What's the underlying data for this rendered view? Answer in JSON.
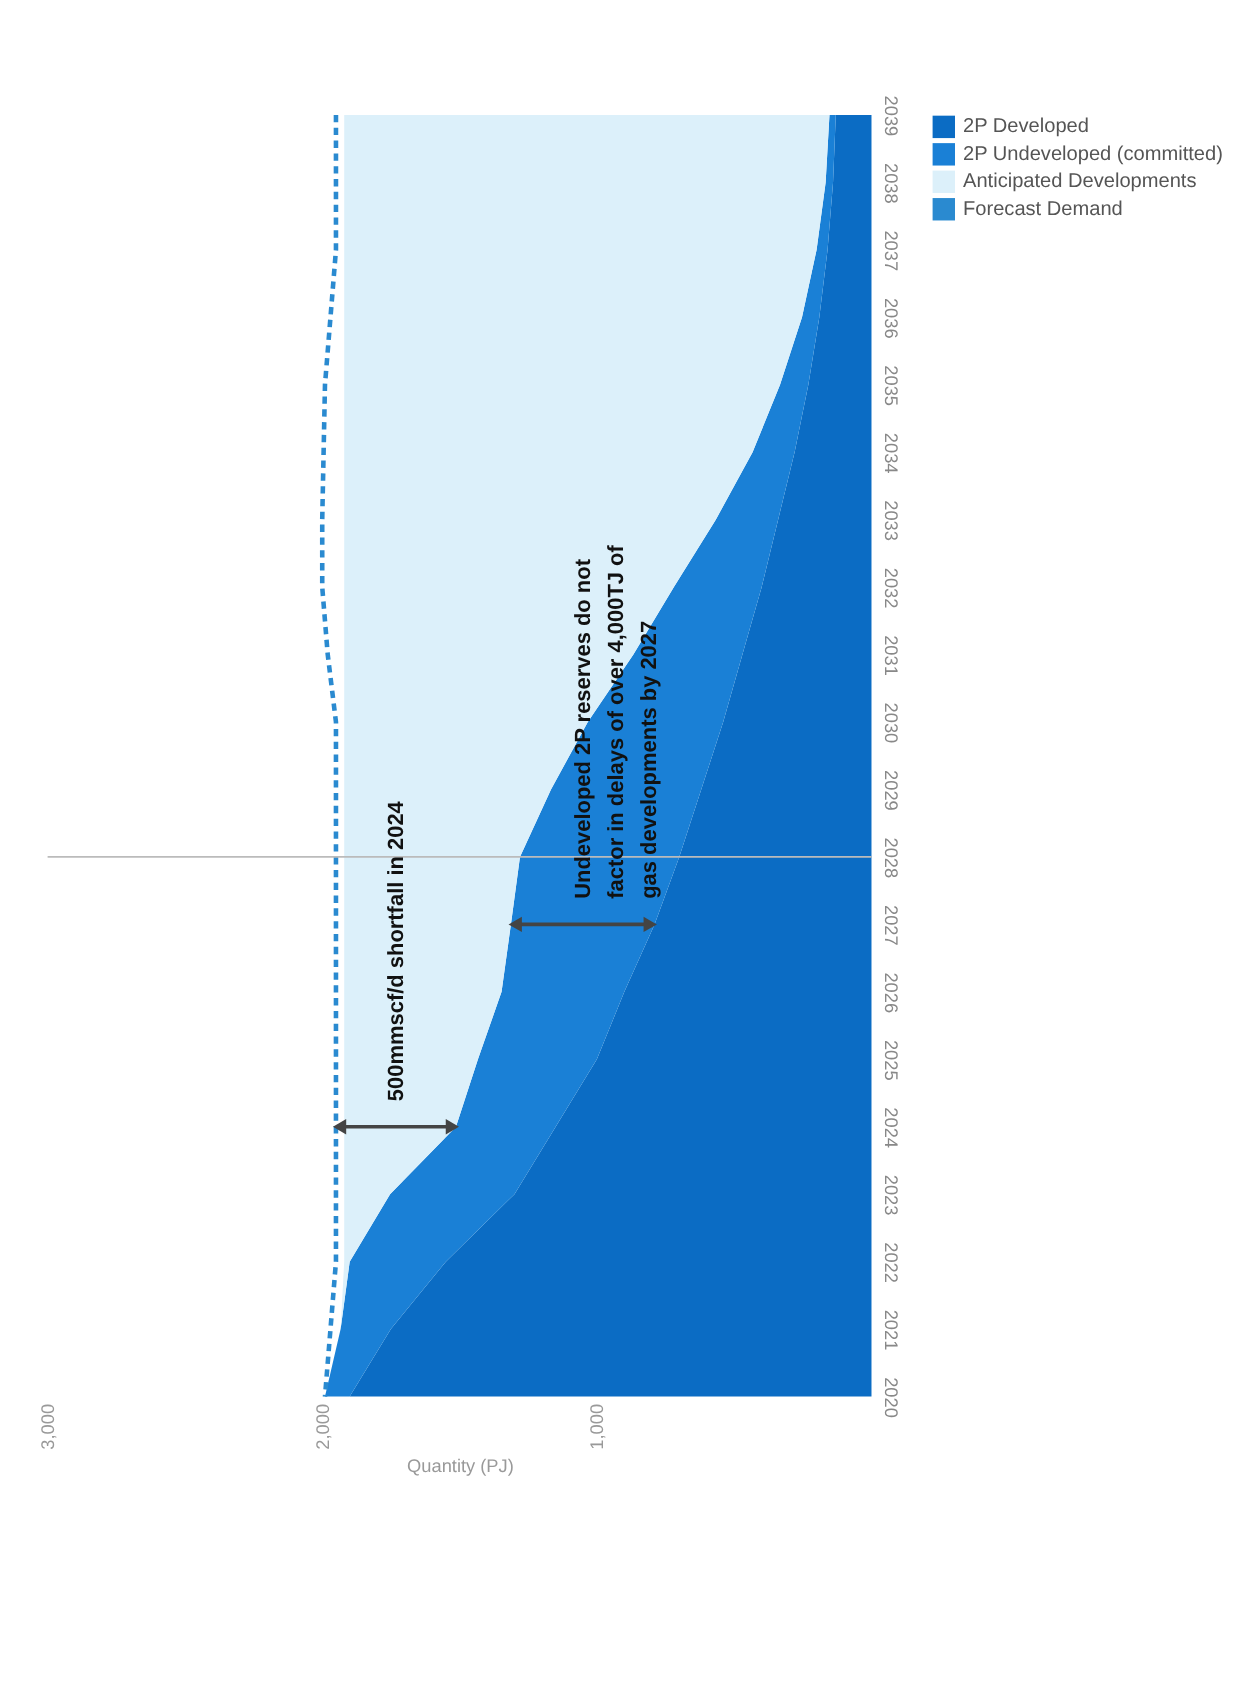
{
  "chart_data": {
    "type": "area",
    "orientation": "horizontal",
    "stacked": true,
    "categories": [
      "2039",
      "2038",
      "2037",
      "2036",
      "2035",
      "2034",
      "2033",
      "2032",
      "2031",
      "2030",
      "2029",
      "2028",
      "2027",
      "2026",
      "2025",
      "2024",
      "2023",
      "2022",
      "2021",
      "2020"
    ],
    "series": [
      {
        "name": "2P Developed",
        "color": "#0b6cc4",
        "values": [
          130,
          140,
          160,
          190,
          230,
          280,
          340,
          400,
          470,
          540,
          620,
          700,
          790,
          900,
          1000,
          1150,
          1300,
          1550,
          1750,
          1900
        ]
      },
      {
        "name": "2P Undeveloped (committed)",
        "color": "#1a80d6",
        "values": [
          23,
          27,
          40,
          63,
          103,
          153,
          227,
          320,
          397,
          493,
          547,
          580,
          523,
          447,
          433,
          363,
          453,
          350,
          183,
          90
        ]
      },
      {
        "name": "Anticipated Developments",
        "color": "#dcf0fa",
        "values": [
          1767,
          1753,
          1720,
          1667,
          1587,
          1487,
          1353,
          1200,
          1053,
          887,
          753,
          640,
          607,
          573,
          487,
          407,
          167,
          20,
          0,
          0
        ]
      },
      {
        "name": "Forecast Demand",
        "type": "line",
        "line_style": "dashed",
        "color": "#2a8ad0",
        "values": [
          1950,
          1950,
          1950,
          1970,
          1990,
          1995,
          2000,
          2000,
          1980,
          1950,
          1950,
          1950,
          1950,
          1950,
          1950,
          1950,
          1950,
          1950,
          1970,
          1990
        ]
      }
    ],
    "xlim": [
      3000,
      0
    ],
    "xticks": [
      {
        "value": 1000,
        "label": "1,000"
      },
      {
        "value": 2000,
        "label": "2,000"
      },
      {
        "value": 3000,
        "label": "3,000"
      }
    ],
    "xlabel": "Quantity (PJ)",
    "ref_lines": [
      {
        "axis": "y",
        "value": "2028",
        "color": "#bbbbbb"
      }
    ],
    "annotations": [
      {
        "text": "500mmscf/d shortfall in 2024",
        "x": 1950,
        "y": "2024"
      },
      {
        "text": "Undeveloped 2P reserves do not factor in delays of over 4,000TJ of gas developments by 2027",
        "x": 1313,
        "y": "2027"
      }
    ],
    "grid": false,
    "legend": "right"
  }
}
